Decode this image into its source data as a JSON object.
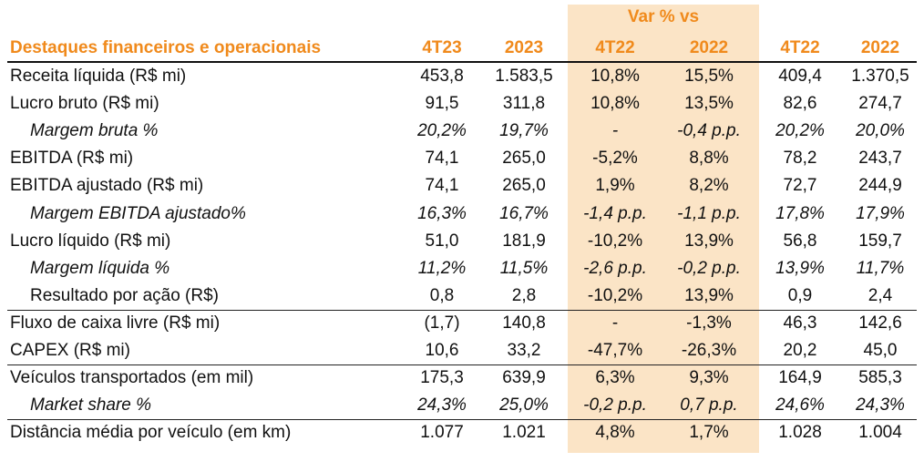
{
  "header": {
    "var_label": "Var % vs",
    "title": "Destaques financeiros e operacionais",
    "columns": [
      "4T23",
      "2023",
      "4T22",
      "2022",
      "4T22",
      "2022"
    ]
  },
  "rows": [
    {
      "label": "Receita líquida (R$ mi)",
      "values": [
        "453,8",
        "1.583,5",
        "10,8%",
        "15,5%",
        "409,4",
        "1.370,5"
      ]
    },
    {
      "label": "Lucro bruto (R$ mi)",
      "values": [
        "91,5",
        "311,8",
        "10,8%",
        "13,5%",
        "82,6",
        "274,7"
      ]
    },
    {
      "label": "Margem bruta %",
      "values": [
        "20,2%",
        "19,7%",
        "-",
        "-0,4 p.p.",
        "20,2%",
        "20,0%"
      ]
    },
    {
      "label": "EBITDA (R$ mi)",
      "values": [
        "74,1",
        "265,0",
        "-5,2%",
        "8,8%",
        "78,2",
        "243,7"
      ]
    },
    {
      "label": "EBITDA ajustado (R$ mi)",
      "values": [
        "74,1",
        "265,0",
        "1,9%",
        "8,2%",
        "72,7",
        "244,9"
      ]
    },
    {
      "label": "Margem EBITDA ajustado%",
      "values": [
        "16,3%",
        "16,7%",
        "-1,4 p.p.",
        "-1,1 p.p.",
        "17,8%",
        "17,9%"
      ]
    },
    {
      "label": "Lucro líquido (R$ mi)",
      "values": [
        "51,0",
        "181,9",
        "-10,2%",
        "13,9%",
        "56,8",
        "159,7"
      ]
    },
    {
      "label": "Margem líquida %",
      "values": [
        "11,2%",
        "11,5%",
        "-2,6 p.p.",
        "-0,2 p.p.",
        "13,9%",
        "11,7%"
      ]
    },
    {
      "label": "Resultado por ação (R$)",
      "values": [
        "0,8",
        "2,8",
        "-10,2%",
        "13,9%",
        "0,9",
        "2,4"
      ]
    },
    {
      "label": "Fluxo de caixa livre (R$ mi)",
      "values": [
        "(1,7)",
        "140,8",
        "-",
        "-1,3%",
        "46,3",
        "142,6"
      ]
    },
    {
      "label": "CAPEX (R$ mi)",
      "values": [
        "10,6",
        "33,2",
        "-47,7%",
        "-26,3%",
        "20,2",
        "45,0"
      ]
    },
    {
      "label": "Veículos transportados (em mil)",
      "values": [
        "175,3",
        "639,9",
        "6,3%",
        "9,3%",
        "164,9",
        "585,3"
      ]
    },
    {
      "label": "Market share %",
      "values": [
        "24,3%",
        "25,0%",
        "-0,2 p.p.",
        "0,7 p.p.",
        "24,6%",
        "24,3%"
      ]
    },
    {
      "label": "Distância média por veículo (em km)",
      "values": [
        "1.077",
        "1.021",
        "4,8%",
        "1,7%",
        "1.028",
        "1.004"
      ]
    }
  ]
}
